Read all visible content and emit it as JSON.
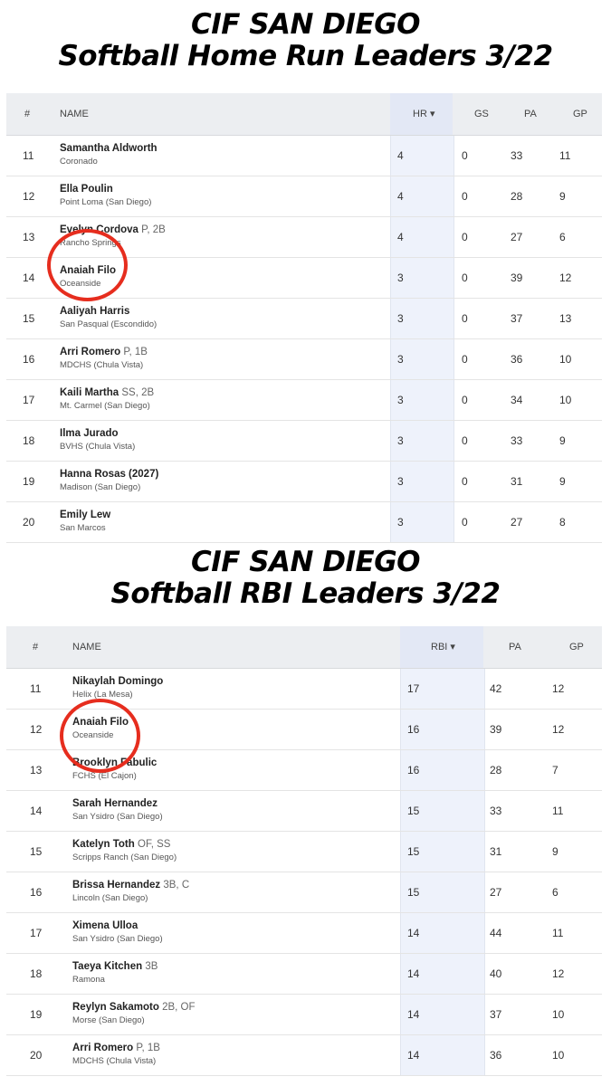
{
  "hr": {
    "title_line1": "CIF SAN DIEGO",
    "title_line2": "Softball Home Run Leaders 3/22",
    "columns": {
      "rank": "#",
      "name": "NAME",
      "sort": "HR ▾",
      "gs": "GS",
      "pa": "PA",
      "gp": "GP"
    },
    "rows": [
      {
        "rank": "11",
        "name": "Samantha Aldworth",
        "pos": "",
        "school": "Coronado",
        "hr": "4",
        "gs": "0",
        "pa": "33",
        "gp": "11"
      },
      {
        "rank": "12",
        "name": "Ella Poulin",
        "pos": "",
        "school": "Point Loma (San Diego)",
        "hr": "4",
        "gs": "0",
        "pa": "28",
        "gp": "9"
      },
      {
        "rank": "13",
        "name": "Evelyn Cordova",
        "pos": "P, 2B",
        "school": "Rancho Springs",
        "hr": "4",
        "gs": "0",
        "pa": "27",
        "gp": "6"
      },
      {
        "rank": "14",
        "name": "Anaiah Filo",
        "pos": "",
        "school": "Oceanside",
        "hr": "3",
        "gs": "0",
        "pa": "39",
        "gp": "12"
      },
      {
        "rank": "15",
        "name": "Aaliyah Harris",
        "pos": "",
        "school": "San Pasqual (Escondido)",
        "hr": "3",
        "gs": "0",
        "pa": "37",
        "gp": "13"
      },
      {
        "rank": "16",
        "name": "Arri Romero",
        "pos": "P, 1B",
        "school": "MDCHS (Chula Vista)",
        "hr": "3",
        "gs": "0",
        "pa": "36",
        "gp": "10"
      },
      {
        "rank": "17",
        "name": "Kaili Martha",
        "pos": "SS, 2B",
        "school": "Mt. Carmel (San Diego)",
        "hr": "3",
        "gs": "0",
        "pa": "34",
        "gp": "10"
      },
      {
        "rank": "18",
        "name": "Ilma Jurado",
        "pos": "",
        "school": "BVHS (Chula Vista)",
        "hr": "3",
        "gs": "0",
        "pa": "33",
        "gp": "9"
      },
      {
        "rank": "19",
        "name": "Hanna Rosas (2027)",
        "pos": "",
        "school": "Madison (San Diego)",
        "hr": "3",
        "gs": "0",
        "pa": "31",
        "gp": "9"
      },
      {
        "rank": "20",
        "name": "Emily Lew",
        "pos": "",
        "school": "San Marcos",
        "hr": "3",
        "gs": "0",
        "pa": "27",
        "gp": "8"
      }
    ]
  },
  "rbi": {
    "title_line1": "CIF SAN DIEGO",
    "title_line2": "Softball RBI Leaders 3/22",
    "columns": {
      "rank": "#",
      "name": "NAME",
      "sort": "RBI ▾",
      "pa": "PA",
      "gp": "GP"
    },
    "rows": [
      {
        "rank": "11",
        "name": "Nikaylah Domingo",
        "pos": "",
        "school": "Helix (La Mesa)",
        "rbi": "17",
        "pa": "42",
        "gp": "12"
      },
      {
        "rank": "12",
        "name": "Anaiah Filo",
        "pos": "",
        "school": "Oceanside",
        "rbi": "16",
        "pa": "39",
        "gp": "12"
      },
      {
        "rank": "13",
        "name": "Brooklyn Fabulic",
        "pos": "",
        "school": "FCHS (El Cajon)",
        "rbi": "16",
        "pa": "28",
        "gp": "7"
      },
      {
        "rank": "14",
        "name": "Sarah Hernandez",
        "pos": "",
        "school": "San Ysidro (San Diego)",
        "rbi": "15",
        "pa": "33",
        "gp": "11"
      },
      {
        "rank": "15",
        "name": "Katelyn Toth",
        "pos": "OF, SS",
        "school": "Scripps Ranch (San Diego)",
        "rbi": "15",
        "pa": "31",
        "gp": "9"
      },
      {
        "rank": "16",
        "name": "Brissa Hernandez",
        "pos": "3B, C",
        "school": "Lincoln (San Diego)",
        "rbi": "15",
        "pa": "27",
        "gp": "6"
      },
      {
        "rank": "17",
        "name": "Ximena Ulloa",
        "pos": "",
        "school": "San Ysidro (San Diego)",
        "rbi": "14",
        "pa": "44",
        "gp": "11"
      },
      {
        "rank": "18",
        "name": "Taeya Kitchen",
        "pos": "3B",
        "school": "Ramona",
        "rbi": "14",
        "pa": "40",
        "gp": "12"
      },
      {
        "rank": "19",
        "name": "Reylyn Sakamoto",
        "pos": "2B, OF",
        "school": "Morse (San Diego)",
        "rbi": "14",
        "pa": "37",
        "gp": "10"
      },
      {
        "rank": "20",
        "name": "Arri Romero",
        "pos": "P, 1B",
        "school": "MDCHS (Chula Vista)",
        "rbi": "14",
        "pa": "36",
        "gp": "10"
      }
    ]
  },
  "highlight_color": "#e62d1e"
}
